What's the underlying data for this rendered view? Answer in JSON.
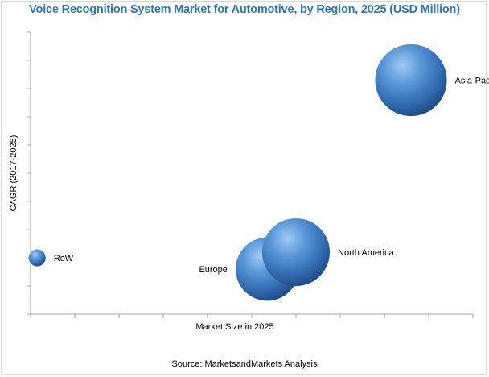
{
  "chart_data": {
    "type": "bubble",
    "title": "Voice Recognition System Market for Automotive, by Region, 2025 (USD Million)",
    "xlabel": "Market Size in 2025",
    "ylabel": "CAGR (2017-2025)",
    "source": "Source: MarketsandMarkets Analysis",
    "xlim": [
      0,
      10
    ],
    "ylim": [
      0,
      10
    ],
    "grid": false,
    "series": [
      {
        "label": "RoW",
        "x": 0.15,
        "y": 2.0,
        "size": 0.2
      },
      {
        "label": "Europe",
        "x": 5.35,
        "y": 1.6,
        "size": 2.8
      },
      {
        "label": "North America",
        "x": 6.0,
        "y": 2.2,
        "size": 3.2
      },
      {
        "label": "Asia-Pacific",
        "x": 8.6,
        "y": 8.3,
        "size": 3.6
      }
    ],
    "colors": {
      "bubble_light": "#8fc0ef",
      "bubble_mid": "#3d7cc4",
      "bubble_dark": "#1f4e8c",
      "title": "#2e75b6"
    }
  }
}
